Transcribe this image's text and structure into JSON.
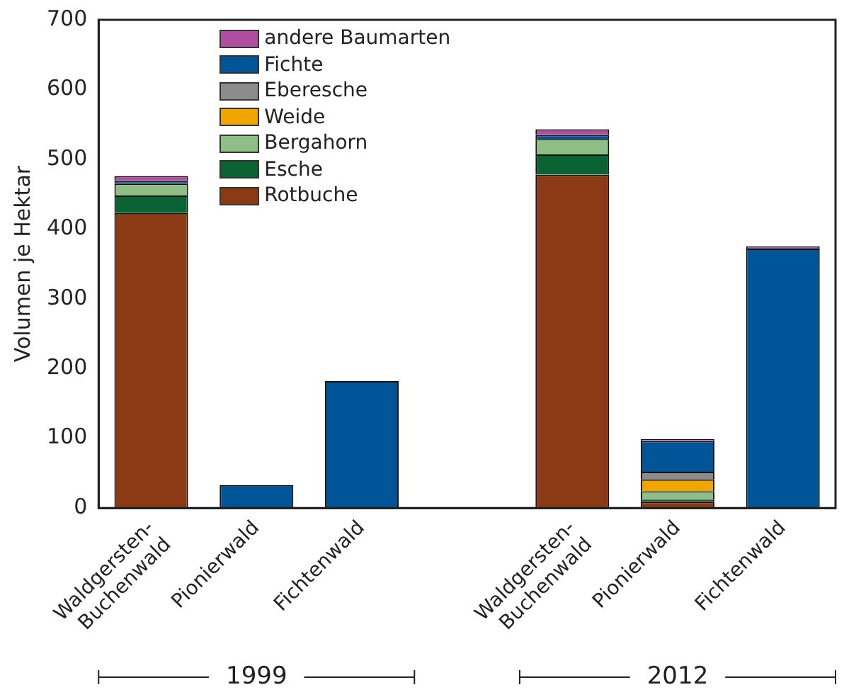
{
  "chart_data": {
    "type": "bar",
    "stacked": true,
    "ylabel": "Volumen je Hektar",
    "categories": [
      "Waldgersten-Buchenwald",
      "Pionierwald",
      "Fichtenwald",
      null,
      "Waldgersten-Buchenwald",
      "Pionierwald",
      "Fichtenwald"
    ],
    "series": [
      {
        "name": "Rotbuche",
        "color": "#8b3a15",
        "values": [
          423,
          0,
          0,
          null,
          478,
          9,
          0
        ]
      },
      {
        "name": "Esche",
        "color": "#0b6232",
        "values": [
          25,
          0,
          0,
          null,
          29,
          3,
          0
        ]
      },
      {
        "name": "Bergahorn",
        "color": "#8fbf84",
        "values": [
          17,
          0,
          0,
          null,
          22,
          12,
          0
        ]
      },
      {
        "name": "Weide",
        "color": "#f0a500",
        "values": [
          0,
          0,
          0,
          null,
          0,
          17,
          0
        ]
      },
      {
        "name": "Eberesche",
        "color": "#8c8c8c",
        "values": [
          0,
          0,
          0,
          null,
          0,
          11,
          0
        ]
      },
      {
        "name": "Fichte",
        "color": "#005598",
        "values": [
          4,
          33,
          182,
          null,
          6,
          44,
          372
        ]
      },
      {
        "name": "andere Baumarten",
        "color": "#b04ea0",
        "values": [
          7,
          0,
          0,
          null,
          8,
          3,
          3
        ]
      }
    ],
    "ylim": [
      0,
      700
    ],
    "yticks": [
      0,
      100,
      200,
      300,
      400,
      500,
      600,
      700
    ],
    "grid": false,
    "legend": "top left",
    "annotations": [
      "1999",
      "2012"
    ]
  }
}
